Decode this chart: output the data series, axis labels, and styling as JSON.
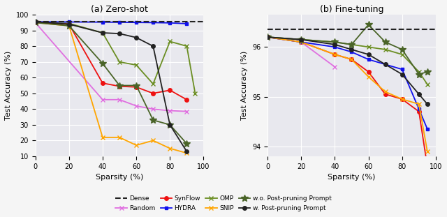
{
  "title_left": "(a) Zero-shot",
  "title_right": "(b) Fine-tuning",
  "xlabel": "Sparsity (%)",
  "ylabel": "Test Accuracy (%)",
  "bg_color": "#e8e8ee",
  "fig_bg": "#f5f5f5",
  "zeroshot": {
    "sparsity": [
      0,
      20,
      40,
      50,
      60,
      70,
      80,
      90,
      95
    ],
    "dense_val": 95.5,
    "omp": [
      95.0,
      94.5,
      88.5,
      70.0,
      68.0,
      56.0,
      83.0,
      80.0,
      50.0
    ],
    "random": [
      95.0,
      null,
      46.0,
      46.0,
      42.0,
      40.0,
      39.0,
      38.5,
      null
    ],
    "synflow": [
      95.0,
      94.0,
      56.5,
      54.5,
      54.0,
      50.0,
      52.0,
      46.0,
      null
    ],
    "hydra": [
      95.5,
      95.4,
      95.3,
      95.2,
      95.1,
      95.0,
      94.8,
      94.3,
      null
    ],
    "snip": [
      95.0,
      93.0,
      22.0,
      22.0,
      17.0,
      20.0,
      15.0,
      12.0,
      null
    ],
    "wo_prompt": [
      95.0,
      93.0,
      69.0,
      55.0,
      55.0,
      33.0,
      30.0,
      18.0,
      null
    ],
    "w_prompt": [
      95.5,
      94.0,
      88.5,
      88.0,
      85.5,
      80.0,
      30.0,
      13.0,
      null
    ],
    "ylim": [
      10,
      100
    ],
    "yticks": [
      10,
      20,
      30,
      40,
      50,
      60,
      70,
      80,
      90,
      100
    ],
    "xlim": [
      0,
      100
    ],
    "xticks": [
      0,
      20,
      40,
      60,
      80,
      100
    ]
  },
  "finetuning": {
    "sparsity": [
      0,
      20,
      40,
      50,
      60,
      70,
      80,
      90,
      95
    ],
    "dense_val": 96.35,
    "omp": [
      96.2,
      96.15,
      96.1,
      96.05,
      96.0,
      95.95,
      95.85,
      95.5,
      95.25
    ],
    "random": [
      96.2,
      96.1,
      95.6,
      null,
      null,
      null,
      null,
      null,
      null
    ],
    "synflow": [
      96.2,
      96.1,
      95.85,
      95.75,
      95.5,
      95.05,
      94.95,
      94.7,
      93.6
    ],
    "hydra": [
      96.2,
      96.1,
      96.0,
      95.9,
      95.75,
      95.65,
      95.55,
      94.75,
      94.35
    ],
    "snip": [
      96.2,
      96.1,
      95.85,
      95.75,
      95.4,
      95.1,
      94.95,
      94.85,
      93.9
    ],
    "wo_prompt": [
      96.2,
      96.15,
      96.1,
      96.05,
      96.45,
      96.1,
      95.95,
      95.45,
      95.5
    ],
    "w_prompt": [
      96.2,
      96.15,
      96.05,
      95.95,
      95.85,
      95.65,
      95.45,
      95.05,
      94.85
    ],
    "ylim": [
      93.8,
      96.65
    ],
    "yticks": [
      94,
      95,
      96
    ],
    "xlim": [
      0,
      100
    ],
    "xticks": [
      0,
      20,
      40,
      60,
      80,
      100
    ]
  },
  "colors": {
    "dense": "#222222",
    "omp": "#6b8e23",
    "random": "#e070e0",
    "synflow": "#ee1111",
    "hydra": "#1111ee",
    "snip": "#ffa500",
    "wo_prompt": "#4a6428",
    "w_prompt": "#222222"
  }
}
